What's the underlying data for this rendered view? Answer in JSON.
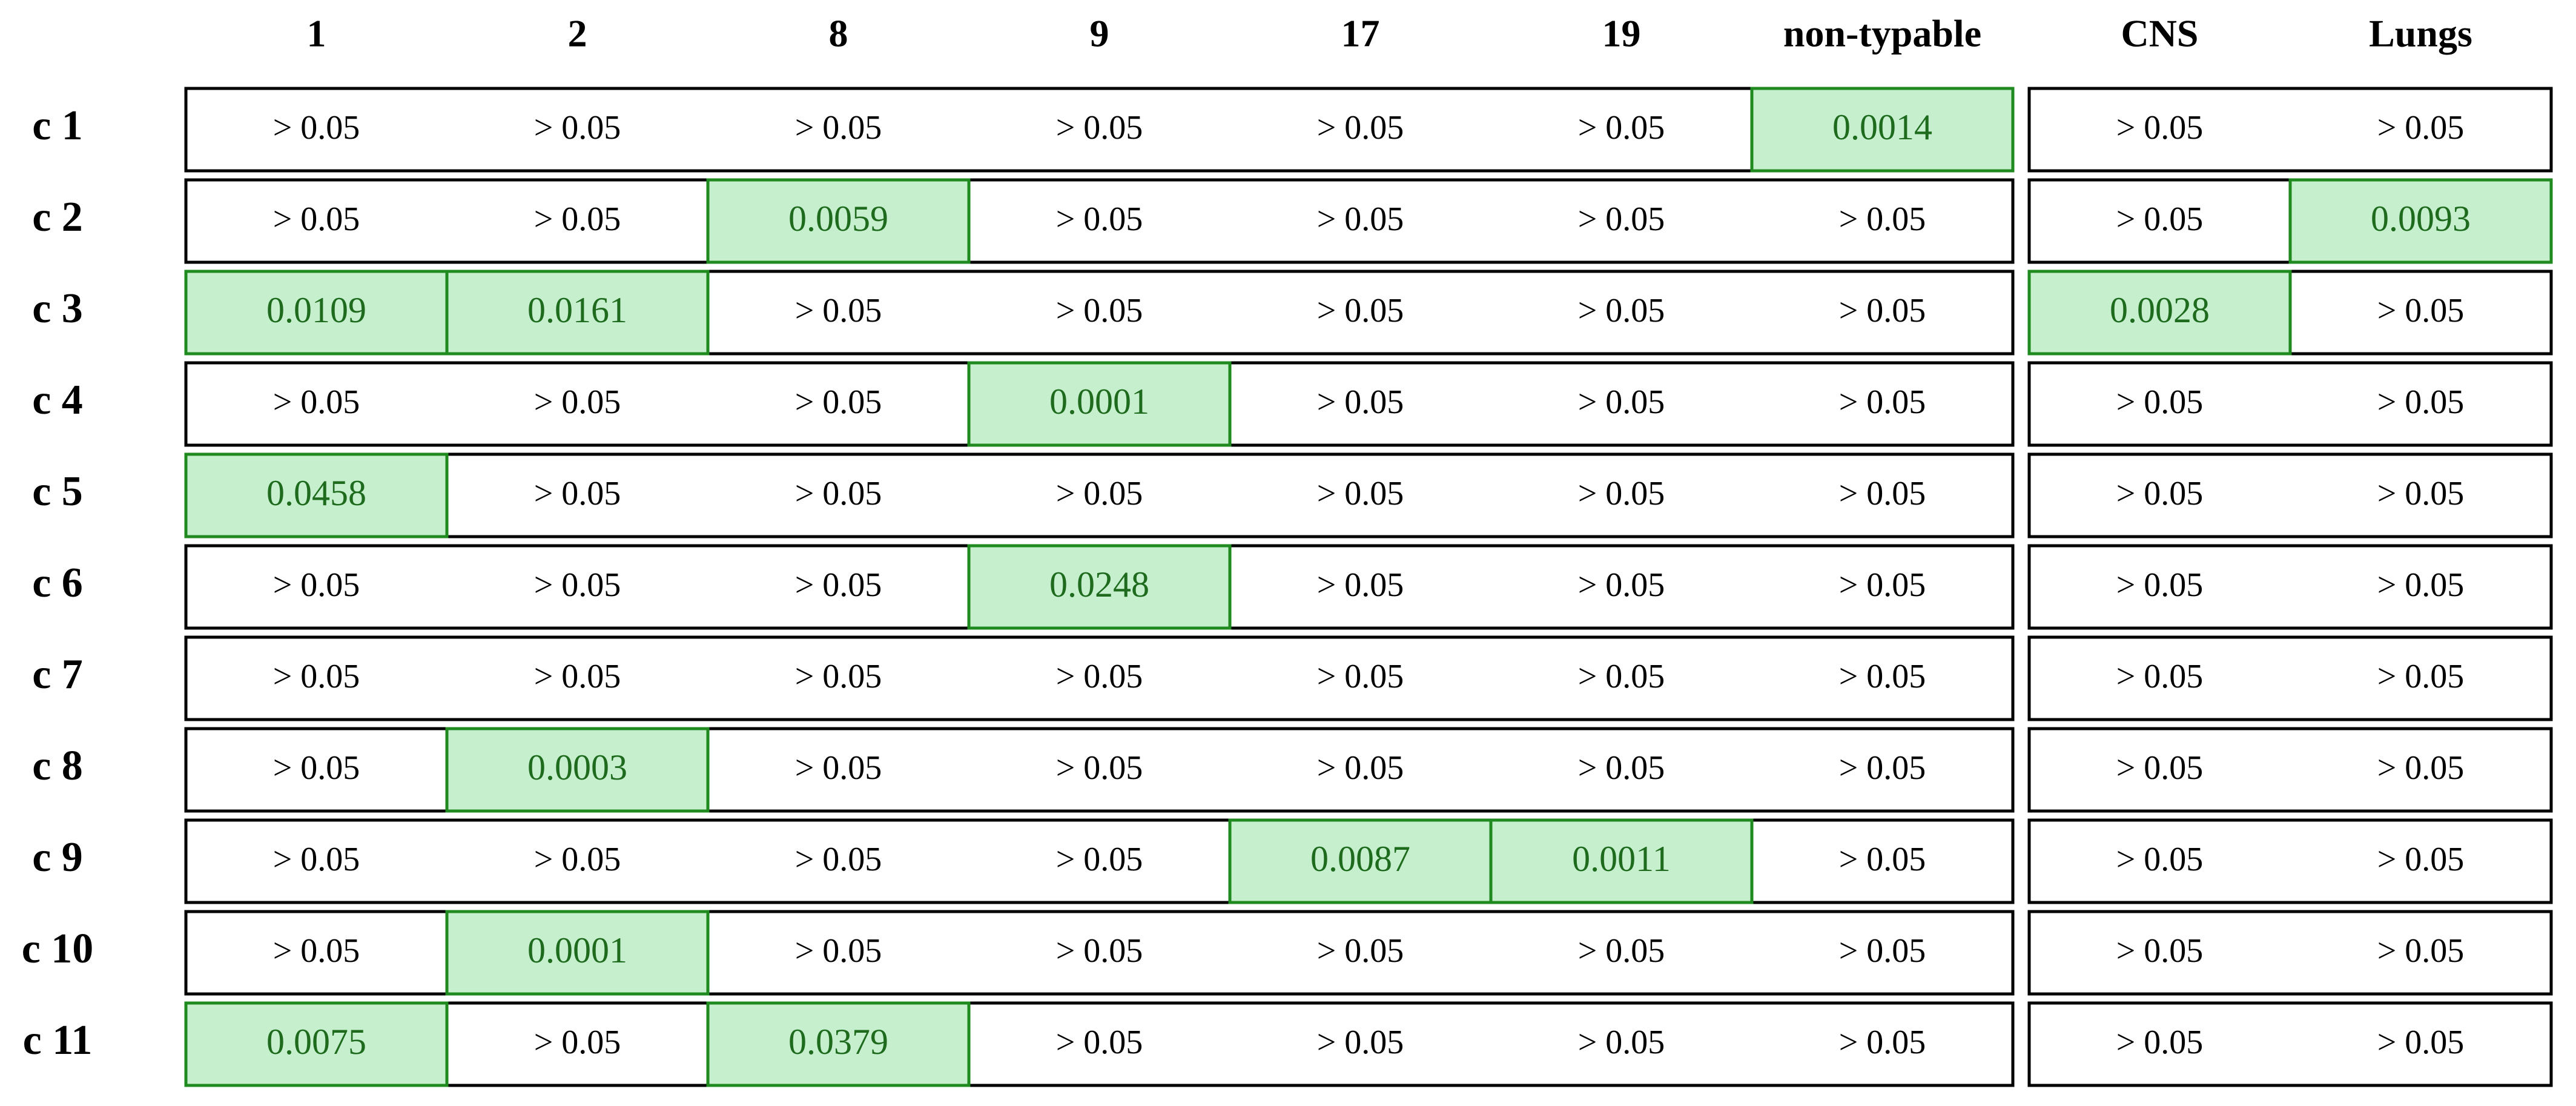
{
  "columns": [
    "1",
    "2",
    "8",
    "9",
    "17",
    "19",
    "non-typable",
    "CNS",
    "Lungs"
  ],
  "rows": [
    {
      "label": "c 1",
      "cells": [
        "> 0.05",
        "> 0.05",
        "> 0.05",
        "> 0.05",
        "> 0.05",
        "> 0.05",
        0.0014,
        "> 0.05",
        "> 0.05"
      ]
    },
    {
      "label": "c 2",
      "cells": [
        "> 0.05",
        "> 0.05",
        0.0059,
        "> 0.05",
        "> 0.05",
        "> 0.05",
        "> 0.05",
        "> 0.05",
        0.0093
      ]
    },
    {
      "label": "c 3",
      "cells": [
        0.0109,
        0.0161,
        "> 0.05",
        "> 0.05",
        "> 0.05",
        "> 0.05",
        "> 0.05",
        0.0028,
        "> 0.05"
      ]
    },
    {
      "label": "c 4",
      "cells": [
        "> 0.05",
        "> 0.05",
        "> 0.05",
        0.0001,
        "> 0.05",
        "> 0.05",
        "> 0.05",
        "> 0.05",
        "> 0.05"
      ]
    },
    {
      "label": "c 5",
      "cells": [
        0.0458,
        "> 0.05",
        "> 0.05",
        "> 0.05",
        "> 0.05",
        "> 0.05",
        "> 0.05",
        "> 0.05",
        "> 0.05"
      ]
    },
    {
      "label": "c 6",
      "cells": [
        "> 0.05",
        "> 0.05",
        "> 0.05",
        0.0248,
        "> 0.05",
        "> 0.05",
        "> 0.05",
        "> 0.05",
        "> 0.05"
      ]
    },
    {
      "label": "c 7",
      "cells": [
        "> 0.05",
        "> 0.05",
        "> 0.05",
        "> 0.05",
        "> 0.05",
        "> 0.05",
        "> 0.05",
        "> 0.05",
        "> 0.05"
      ]
    },
    {
      "label": "c 8",
      "cells": [
        "> 0.05",
        0.0003,
        "> 0.05",
        "> 0.05",
        "> 0.05",
        "> 0.05",
        "> 0.05",
        "> 0.05",
        "> 0.05"
      ]
    },
    {
      "label": "c 9",
      "cells": [
        "> 0.05",
        "> 0.05",
        "> 0.05",
        "> 0.05",
        0.0087,
        0.0011,
        "> 0.05",
        "> 0.05",
        "> 0.05"
      ]
    },
    {
      "label": "c 10",
      "cells": [
        "> 0.05",
        0.0001,
        "> 0.05",
        "> 0.05",
        "> 0.05",
        "> 0.05",
        "> 0.05",
        "> 0.05",
        "> 0.05"
      ]
    },
    {
      "label": "c 11",
      "cells": [
        0.0075,
        "> 0.05",
        0.0379,
        "> 0.05",
        "> 0.05",
        "> 0.05",
        "> 0.05",
        "> 0.05",
        "> 0.05"
      ]
    }
  ]
}
